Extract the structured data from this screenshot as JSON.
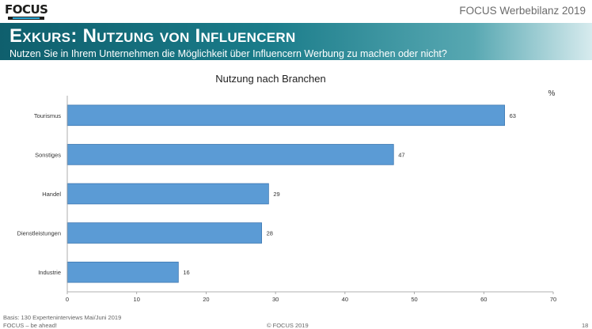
{
  "header": {
    "logo_text": "FOCUS",
    "brand": "FOCUS Werbebilanz 2019",
    "title": "Exkurs: Nutzung von Influencern",
    "subtitle": "Nutzen Sie in Ihrem Unternehmen die Möglichkeit über Influencern Werbung zu machen oder nicht?"
  },
  "chart_data": {
    "type": "bar",
    "orientation": "horizontal",
    "title": "Nutzung nach Branchen",
    "unit_label": "%",
    "categories": [
      "Tourismus",
      "Sonstiges",
      "Handel",
      "Dienstleistungen",
      "Industrie"
    ],
    "values": [
      63,
      47,
      29,
      28,
      16
    ],
    "xlim": [
      0,
      70
    ],
    "xticks": [
      0,
      10,
      20,
      30,
      40,
      50,
      60,
      70
    ],
    "bar_color": "#5b9bd5",
    "bar_edge_color": "#3e78b2",
    "grid": false,
    "legend": "none"
  },
  "footer": {
    "source": "Basis: 130 Experteninterviews Mai/Juni 2019",
    "slogan": "FOCUS – be ahead!",
    "copyright": "© FOCUS 2019",
    "page_number": "18"
  }
}
